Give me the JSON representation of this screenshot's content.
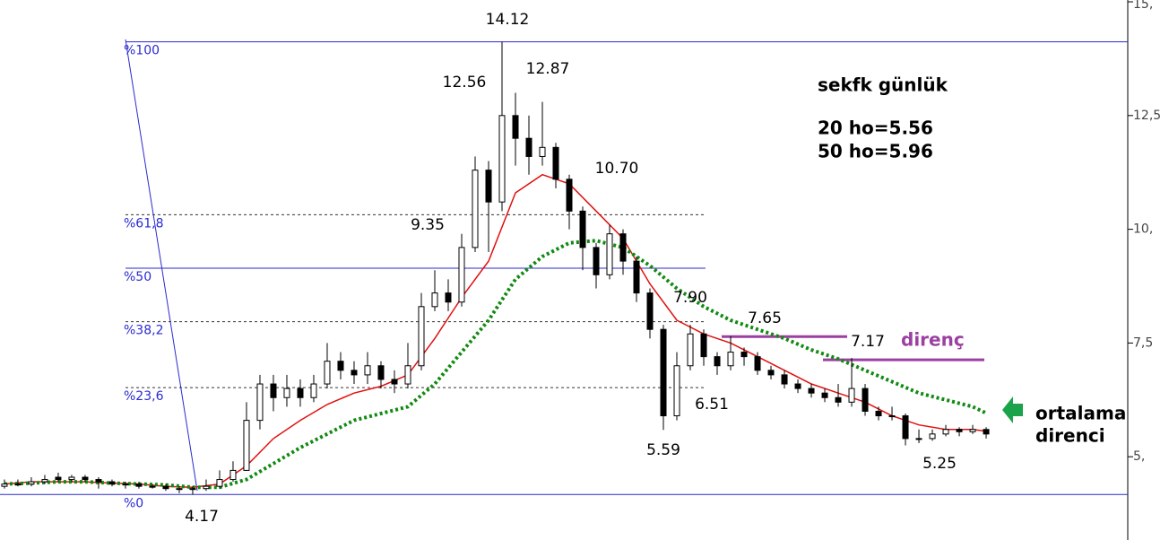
{
  "chart_data": {
    "type": "candlestick",
    "xlim": [
      -0.33,
      83.53
    ],
    "ylim": [
      3.17,
      15.04
    ],
    "yticks": [
      {
        "value": 5,
        "label": "5,"
      },
      {
        "value": 7.5,
        "label": "7,5"
      },
      {
        "value": 10,
        "label": "10,"
      },
      {
        "value": 12.5,
        "label": "12,5"
      },
      {
        "value": 15,
        "label": "15,"
      }
    ],
    "candles": [
      [
        4.35,
        4.5,
        4.3,
        4.4
      ],
      [
        4.4,
        4.5,
        4.35,
        4.4
      ],
      [
        4.4,
        4.55,
        4.35,
        4.45
      ],
      [
        4.45,
        4.6,
        4.4,
        4.5
      ],
      [
        4.55,
        4.65,
        4.45,
        4.5
      ],
      [
        4.5,
        4.6,
        4.45,
        4.55
      ],
      [
        4.55,
        4.6,
        4.45,
        4.5
      ],
      [
        4.5,
        4.55,
        4.3,
        4.45
      ],
      [
        4.45,
        4.5,
        4.35,
        4.4
      ],
      [
        4.4,
        4.45,
        4.3,
        4.4
      ],
      [
        4.4,
        4.45,
        4.3,
        4.35
      ],
      [
        4.35,
        4.4,
        4.3,
        4.35
      ],
      [
        4.35,
        4.4,
        4.25,
        4.3
      ],
      [
        4.3,
        4.35,
        4.2,
        4.3
      ],
      [
        4.3,
        4.35,
        4.17,
        4.3
      ],
      [
        4.3,
        4.5,
        4.25,
        4.35
      ],
      [
        4.35,
        4.7,
        4.3,
        4.5
      ],
      [
        4.5,
        4.9,
        4.45,
        4.7
      ],
      [
        4.7,
        6.2,
        4.7,
        5.8
      ],
      [
        5.8,
        6.8,
        5.6,
        6.6
      ],
      [
        6.6,
        6.8,
        6.0,
        6.3
      ],
      [
        6.3,
        6.8,
        6.1,
        6.5
      ],
      [
        6.5,
        6.7,
        6.1,
        6.3
      ],
      [
        6.3,
        6.8,
        6.2,
        6.6
      ],
      [
        6.6,
        7.5,
        6.5,
        7.1
      ],
      [
        7.1,
        7.3,
        6.7,
        6.9
      ],
      [
        6.9,
        7.1,
        6.6,
        6.8
      ],
      [
        6.8,
        7.3,
        6.6,
        7.0
      ],
      [
        7.0,
        7.1,
        6.5,
        6.7
      ],
      [
        6.7,
        6.9,
        6.4,
        6.6
      ],
      [
        6.6,
        7.5,
        6.5,
        7.0
      ],
      [
        7.0,
        8.6,
        6.9,
        8.3
      ],
      [
        8.3,
        9.1,
        8.2,
        8.6
      ],
      [
        8.6,
        8.9,
        8.2,
        8.4
      ],
      [
        8.4,
        9.9,
        8.3,
        9.6
      ],
      [
        9.6,
        11.6,
        9.5,
        11.3
      ],
      [
        11.3,
        11.5,
        9.5,
        10.6
      ],
      [
        10.6,
        14.12,
        10.4,
        12.5
      ],
      [
        12.5,
        13.0,
        11.4,
        12.0
      ],
      [
        12.0,
        12.5,
        11.2,
        11.6
      ],
      [
        11.6,
        12.8,
        11.4,
        11.8
      ],
      [
        11.8,
        11.9,
        10.9,
        11.1
      ],
      [
        11.1,
        11.2,
        10.0,
        10.4
      ],
      [
        10.4,
        10.5,
        9.1,
        9.6
      ],
      [
        9.6,
        9.7,
        8.7,
        9.0
      ],
      [
        9.0,
        10.1,
        8.9,
        9.9
      ],
      [
        9.9,
        10.0,
        9.0,
        9.3
      ],
      [
        9.3,
        9.4,
        8.4,
        8.6
      ],
      [
        8.6,
        8.7,
        7.6,
        7.8
      ],
      [
        7.8,
        7.9,
        5.59,
        5.9
      ],
      [
        5.9,
        7.3,
        5.8,
        7.0
      ],
      [
        7.0,
        7.9,
        6.9,
        7.7
      ],
      [
        7.7,
        7.8,
        7.0,
        7.2
      ],
      [
        7.2,
        7.3,
        6.8,
        7.0
      ],
      [
        7.0,
        7.65,
        6.9,
        7.3
      ],
      [
        7.3,
        7.4,
        7.0,
        7.2
      ],
      [
        7.2,
        7.3,
        6.8,
        6.9
      ],
      [
        6.9,
        7.0,
        6.7,
        6.8
      ],
      [
        6.8,
        6.9,
        6.5,
        6.6
      ],
      [
        6.6,
        6.7,
        6.4,
        6.5
      ],
      [
        6.5,
        6.6,
        6.3,
        6.4
      ],
      [
        6.4,
        6.5,
        6.2,
        6.3
      ],
      [
        6.3,
        6.6,
        6.1,
        6.2
      ],
      [
        6.2,
        7.17,
        6.1,
        6.5
      ],
      [
        6.5,
        6.6,
        5.9,
        6.0
      ],
      [
        6.0,
        6.1,
        5.8,
        5.9
      ],
      [
        5.9,
        6.1,
        5.8,
        5.9
      ],
      [
        5.9,
        5.95,
        5.25,
        5.4
      ],
      [
        5.4,
        5.6,
        5.3,
        5.4
      ],
      [
        5.4,
        5.6,
        5.35,
        5.5
      ],
      [
        5.5,
        5.7,
        5.45,
        5.6
      ],
      [
        5.6,
        5.65,
        5.45,
        5.55
      ],
      [
        5.55,
        5.7,
        5.5,
        5.6
      ],
      [
        5.6,
        5.65,
        5.4,
        5.5
      ]
    ],
    "series": [
      {
        "color": "#e01010",
        "style": "solid",
        "x": [
          0,
          2,
          4,
          6,
          8,
          10,
          12,
          14,
          16,
          18,
          20,
          22,
          24,
          26,
          28,
          30,
          32,
          34,
          36,
          38,
          40,
          42,
          44,
          46,
          48,
          50,
          52,
          54,
          56,
          58,
          60,
          62,
          64,
          66,
          68,
          70,
          72,
          73
        ],
        "values": [
          4.4,
          4.45,
          4.45,
          4.45,
          4.42,
          4.4,
          4.35,
          4.33,
          4.4,
          4.8,
          5.4,
          5.8,
          6.15,
          6.4,
          6.55,
          6.8,
          7.6,
          8.5,
          9.3,
          10.8,
          11.2,
          11.0,
          10.4,
          9.8,
          8.8,
          8.0,
          7.7,
          7.5,
          7.2,
          6.9,
          6.6,
          6.4,
          6.2,
          5.9,
          5.7,
          5.6,
          5.6,
          5.56
        ]
      },
      {
        "color": "#128a12",
        "style": "dotted",
        "x": [
          0,
          2,
          4,
          6,
          8,
          10,
          12,
          14,
          16,
          18,
          20,
          22,
          24,
          26,
          28,
          30,
          32,
          34,
          36,
          38,
          40,
          42,
          44,
          46,
          48,
          50,
          52,
          54,
          56,
          58,
          60,
          62,
          64,
          66,
          68,
          70,
          72,
          73
        ],
        "values": [
          4.4,
          4.42,
          4.45,
          4.45,
          4.42,
          4.4,
          4.38,
          4.33,
          4.33,
          4.5,
          4.85,
          5.2,
          5.5,
          5.8,
          5.95,
          6.1,
          6.6,
          7.3,
          8.0,
          8.9,
          9.4,
          9.7,
          9.75,
          9.6,
          9.2,
          8.7,
          8.3,
          8.0,
          7.8,
          7.6,
          7.35,
          7.15,
          6.9,
          6.65,
          6.4,
          6.25,
          6.1,
          5.96
        ]
      }
    ],
    "fib_levels": [
      {
        "value": 14.12,
        "label": "%100"
      },
      {
        "value": 10.32,
        "label": "%61,8"
      },
      {
        "value": 9.145,
        "label": "%50"
      },
      {
        "value": 7.97,
        "label": "%38,2"
      },
      {
        "value": 6.52,
        "label": "%23,6"
      },
      {
        "value": 4.17,
        "label": "%0"
      }
    ],
    "resistance_lines": [
      7.64,
      7.13
    ],
    "annotations": [
      "14.12",
      "12.56",
      "12.87",
      "10.70",
      "9.35",
      "7.90",
      "7.65",
      "7.17",
      "6.51",
      "5.59",
      "5.25",
      "4.17"
    ],
    "title": "sekfk günlük",
    "notes": [
      "20 ho=5.56",
      "50 ho=5.96"
    ],
    "resistance_label": "direnç",
    "ma_label": [
      "ortalama",
      "direnci"
    ]
  }
}
